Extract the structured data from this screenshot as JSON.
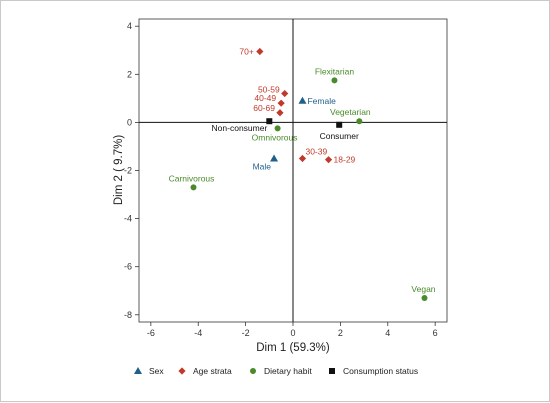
{
  "chart_data": {
    "type": "scatter",
    "xlabel": "Dim 1 (59.3%)",
    "ylabel": "Dim 2 ( 9.7%)",
    "xlim": [
      -6.5,
      6.5
    ],
    "ylim": [
      -8.3,
      4.3
    ],
    "xticks": [
      -6,
      -4,
      -2,
      0,
      2,
      4,
      6
    ],
    "yticks": [
      4,
      2,
      0,
      -2,
      -4,
      -6,
      -8
    ],
    "grid": false,
    "reference_lines": {
      "x": 0,
      "y": 0
    },
    "legend_position": "bottom",
    "series": [
      {
        "name": "Sex",
        "marker": "triangle",
        "color": "#1f5f8b",
        "points": [
          {
            "label": "Female",
            "x": 0.4,
            "y": 0.9
          },
          {
            "label": "Male",
            "x": -0.8,
            "y": -1.5
          }
        ]
      },
      {
        "name": "Age strata",
        "marker": "diamond",
        "color": "#c0392b",
        "points": [
          {
            "label": "70+",
            "x": -1.4,
            "y": 2.95
          },
          {
            "label": "50-59",
            "x": -0.35,
            "y": 1.2
          },
          {
            "label": "40-49",
            "x": -0.5,
            "y": 0.8
          },
          {
            "label": "60-69",
            "x": -0.55,
            "y": 0.4
          },
          {
            "label": "30-39",
            "x": 0.4,
            "y": -1.5
          },
          {
            "label": "18-29",
            "x": 1.5,
            "y": -1.55
          }
        ]
      },
      {
        "name": "Dietary habit",
        "marker": "circle",
        "color": "#4a8a2a",
        "points": [
          {
            "label": "Flexitarian",
            "x": 1.75,
            "y": 1.75
          },
          {
            "label": "Vegetarian",
            "x": 2.8,
            "y": 0.05
          },
          {
            "label": "Omnivorous",
            "x": -0.65,
            "y": -0.25
          },
          {
            "label": "Carnivorous",
            "x": -4.2,
            "y": -2.7
          },
          {
            "label": "Vegan",
            "x": 5.55,
            "y": -7.3
          }
        ]
      },
      {
        "name": "Consumption status",
        "marker": "square",
        "color": "#111111",
        "points": [
          {
            "label": "Non-consumer",
            "x": -1.0,
            "y": 0.05
          },
          {
            "label": "Consumer",
            "x": 1.95,
            "y": -0.1
          }
        ]
      }
    ]
  }
}
